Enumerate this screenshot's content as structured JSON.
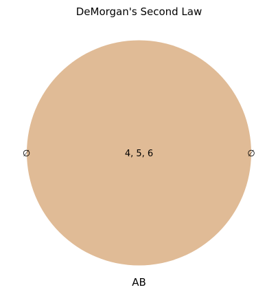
{
  "title": "DeMorgan's Second Law",
  "set_label": "AB",
  "regions": {
    "center": "4, 5, 6",
    "left": "∅",
    "right": "∅"
  },
  "colors": {
    "circle_fill": "#e0bb96",
    "background": "#ffffff",
    "text": "#000000"
  }
}
